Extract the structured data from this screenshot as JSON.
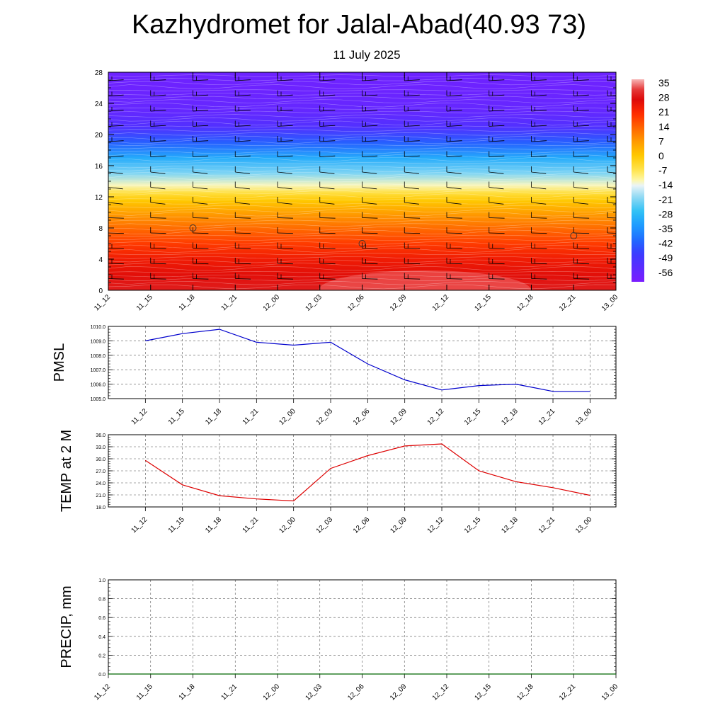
{
  "title": "Kazhydromet for Jalal-Abad(40.93 73)",
  "subtitle": "11 July 2025",
  "time_labels": [
    "11_12",
    "11_15",
    "11_18",
    "11_21",
    "12_00",
    "12_03",
    "12_06",
    "12_09",
    "12_12",
    "12_15",
    "12_18",
    "12_21",
    "13_00"
  ],
  "chart_data": [
    {
      "type": "heatmap",
      "name": "cross-section",
      "x": [
        "11_12",
        "11_15",
        "11_18",
        "11_21",
        "12_00",
        "12_03",
        "12_06",
        "12_09",
        "12_12",
        "12_15",
        "12_18",
        "12_21",
        "13_00"
      ],
      "y_ticks": [
        0,
        4,
        8,
        12,
        16,
        20,
        24,
        28
      ],
      "ylim": [
        0,
        28
      ],
      "profile": [
        {
          "y": 0,
          "v": 30
        },
        {
          "y": 2,
          "v": 27
        },
        {
          "y": 4,
          "v": 24
        },
        {
          "y": 6,
          "v": 19
        },
        {
          "y": 8,
          "v": 13
        },
        {
          "y": 10,
          "v": 6
        },
        {
          "y": 11.5,
          "v": 0
        },
        {
          "y": 12.5,
          "v": -6
        },
        {
          "y": 13.5,
          "v": -13
        },
        {
          "y": 15,
          "v": -22
        },
        {
          "y": 17,
          "v": -32
        },
        {
          "y": 19,
          "v": -44
        },
        {
          "y": 21,
          "v": -54
        },
        {
          "y": 23,
          "v": -58
        },
        {
          "y": 26,
          "v": -60
        },
        {
          "y": 28,
          "v": -60
        }
      ],
      "colorbar": {
        "labels": [
          "35",
          "28",
          "21",
          "14",
          "7",
          "0",
          "-7",
          "-14",
          "-21",
          "-28",
          "-35",
          "-42",
          "-49",
          "-56"
        ],
        "range": [
          -63,
          38
        ]
      },
      "markers": [
        {
          "x": "11_18",
          "y": 8
        },
        {
          "x": "12_06",
          "y": 6
        },
        {
          "x": "12_21",
          "y": 7
        }
      ]
    },
    {
      "type": "line",
      "name": "pmsl",
      "ylabel": "PMSL",
      "color": "#0000cc",
      "x": [
        "11_12",
        "11_15",
        "11_18",
        "11_21",
        "12_00",
        "12_03",
        "12_06",
        "12_09",
        "12_12",
        "12_15",
        "12_18",
        "12_21",
        "13_00"
      ],
      "values": [
        1009.0,
        1009.5,
        1009.8,
        1008.9,
        1008.7,
        1008.9,
        1007.4,
        1006.3,
        1005.6,
        1005.9,
        1006.0,
        1005.5,
        1005.5
      ],
      "ylim": [
        1005.0,
        1010.0
      ],
      "y_ticks": [
        "1005.0",
        "1006.0",
        "1007.0",
        "1008.0",
        "1009.0",
        "1010.0"
      ]
    },
    {
      "type": "line",
      "name": "temp",
      "ylabel": "TEMP at 2 M",
      "color": "#dd0000",
      "x": [
        "11_12",
        "11_15",
        "11_18",
        "11_21",
        "12_00",
        "12_03",
        "12_06",
        "12_09",
        "12_12",
        "12_15",
        "12_18",
        "12_21",
        "13_00"
      ],
      "values": [
        29.6,
        23.5,
        20.8,
        20.0,
        19.5,
        27.6,
        30.8,
        33.2,
        33.7,
        27.0,
        24.3,
        22.8,
        20.9
      ],
      "ylim": [
        18.0,
        36.0
      ],
      "y_ticks": [
        "18.0",
        "21.0",
        "24.0",
        "27.0",
        "30.0",
        "33.0",
        "36.0"
      ]
    },
    {
      "type": "line",
      "name": "precip",
      "ylabel": "PRECIP, mm",
      "color": "#006600",
      "x": [
        "11_12",
        "11_15",
        "11_18",
        "11_21",
        "12_00",
        "12_03",
        "12_06",
        "12_09",
        "12_12",
        "12_15",
        "12_18",
        "12_21",
        "13_00"
      ],
      "values": [
        0,
        0,
        0,
        0,
        0,
        0,
        0,
        0,
        0,
        0,
        0,
        0,
        0
      ],
      "ylim": [
        0,
        1.0
      ],
      "y_ticks": [
        "0.0",
        "0.2",
        "0.4",
        "0.6",
        "0.8",
        "1.0"
      ]
    }
  ]
}
